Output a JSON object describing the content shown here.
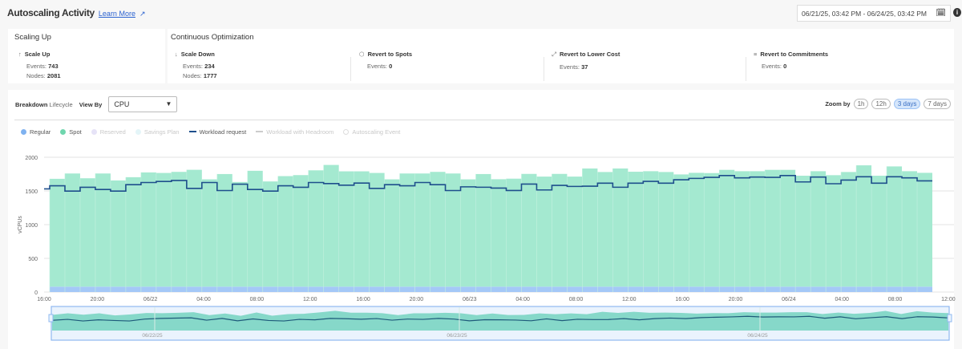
{
  "header": {
    "title": "Autoscaling Activity",
    "learn_more": "Learn More",
    "external_icon": "external-link-icon",
    "date_range": "06/21/25, 03:42 PM - 06/24/25, 03:42 PM",
    "calendar_icon": "calendar-icon",
    "info_icon": "info-icon"
  },
  "scaling_up": {
    "title": "Scaling Up",
    "metrics": [
      {
        "label": "Scale Up",
        "icon": "arrow-up-icon",
        "events_label": "Events:",
        "events": "743",
        "nodes_label": "Nodes:",
        "nodes": "2081"
      }
    ]
  },
  "continuous_optimization": {
    "title": "Continuous Optimization",
    "metrics": [
      {
        "label": "Scale Down",
        "icon": "arrow-down-icon",
        "events_label": "Events:",
        "events": "234",
        "nodes_label": "Nodes:",
        "nodes": "1777"
      },
      {
        "label": "Revert to Spots",
        "icon": "cube-icon",
        "events_label": "Events:",
        "events": "0"
      },
      {
        "label": "Revert to Lower Cost",
        "icon": "resize-icon",
        "events_label": "Events:",
        "events": "37"
      },
      {
        "label": "Revert to Commitments",
        "icon": "layers-icon",
        "events_label": "Events:",
        "events": "0"
      }
    ]
  },
  "controls": {
    "breakdown_label": "Breakdown",
    "breakdown_value": "Lifecycle",
    "view_by_label": "View By",
    "view_by_value": "CPU",
    "zoom_label": "Zoom by",
    "zoom_options": [
      "1h",
      "12h",
      "3 days",
      "7 days"
    ],
    "zoom_selected": "3 days"
  },
  "legend": [
    {
      "label": "Regular",
      "color": "#7fb2f0",
      "active": true,
      "kind": "dot"
    },
    {
      "label": "Spot",
      "color": "#6fd6ae",
      "active": true,
      "kind": "dot"
    },
    {
      "label": "Reserved",
      "color": "#e6e3f7",
      "active": false,
      "kind": "dot"
    },
    {
      "label": "Savings Plan",
      "color": "#e4f5f8",
      "active": false,
      "kind": "dot"
    },
    {
      "label": "Workload request",
      "color": "#1e4f8c",
      "active": true,
      "kind": "line"
    },
    {
      "label": "Workload with Headroom",
      "color": "#cccccc",
      "active": false,
      "kind": "dash"
    },
    {
      "label": "Autoscaling Event",
      "color": "#dddddd",
      "active": false,
      "kind": "ring"
    }
  ],
  "chart_data": {
    "type": "bar",
    "stacked": true,
    "ylabel": "vCPUs",
    "ylim": [
      0,
      2000
    ],
    "yticks": [
      "0",
      "500",
      "1000",
      "1500",
      "2000"
    ],
    "xticks": [
      "16:00",
      "20:00",
      "06/22",
      "04:00",
      "08:00",
      "12:00",
      "16:00",
      "20:00",
      "06/23",
      "04:00",
      "08:00",
      "12:00",
      "16:00",
      "20:00",
      "06/24",
      "04:00",
      "08:00",
      "12:00"
    ],
    "grid": true,
    "series": [
      {
        "name": "Regular",
        "color": "#a4c8f7",
        "values": [
          80,
          80,
          80,
          80,
          80,
          80,
          80,
          80,
          80,
          80,
          80,
          80,
          80,
          80,
          80,
          80,
          80,
          80,
          80,
          80,
          80,
          80,
          80,
          80,
          80,
          80,
          80,
          80,
          80,
          80,
          80,
          80,
          80,
          80,
          80,
          80,
          80,
          80,
          80,
          80,
          80,
          80,
          80,
          80,
          80,
          80,
          80,
          80,
          80,
          80,
          80,
          80,
          80,
          80,
          80,
          80,
          80,
          80
        ]
      },
      {
        "name": "Spot",
        "color": "#a4e9d0",
        "values": [
          1600,
          1679,
          1608,
          1679,
          1576,
          1624,
          1695,
          1687,
          1703,
          1734,
          1592,
          1671,
          1553,
          1719,
          1561,
          1640,
          1655,
          1726,
          1806,
          1711,
          1711,
          1687,
          1592,
          1679,
          1679,
          1703,
          1679,
          1592,
          1671,
          1594,
          1602,
          1673,
          1633,
          1673,
          1633,
          1753,
          1701,
          1753,
          1705,
          1713,
          1701,
          1665,
          1689,
          1685,
          1733,
          1713,
          1713,
          1733,
          1733,
          1646,
          1713,
          1654,
          1701,
          1800,
          1646,
          1784,
          1713,
          1689
        ]
      },
      {
        "name": "Workload request",
        "type": "step-line",
        "color": "#1e4f8c",
        "values": [
          1530,
          1577,
          1498,
          1554,
          1522,
          1498,
          1593,
          1625,
          1641,
          1656,
          1538,
          1625,
          1506,
          1601,
          1522,
          1498,
          1577,
          1554,
          1625,
          1609,
          1585,
          1617,
          1538,
          1593,
          1577,
          1625,
          1593,
          1506,
          1561,
          1555,
          1543,
          1507,
          1602,
          1515,
          1583,
          1567,
          1571,
          1615,
          1555,
          1615,
          1642,
          1615,
          1666,
          1686,
          1702,
          1729,
          1694,
          1706,
          1702,
          1729,
          1634,
          1706,
          1607,
          1662,
          1710,
          1615,
          1710,
          1694,
          1650
        ]
      }
    ]
  },
  "navigator": {
    "labels": [
      "06/22/25",
      "06/23/25",
      "06/24/25"
    ]
  }
}
